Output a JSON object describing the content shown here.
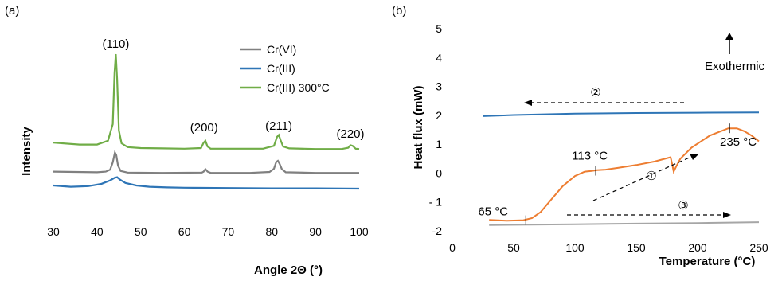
{
  "chart_data": [
    {
      "type": "line",
      "panel_label": "(a)",
      "xlabel": "Angle 2Θ (°)",
      "ylabel": "Intensity",
      "xlim": [
        30,
        100
      ],
      "x_ticks": [
        "30",
        "40",
        "50",
        "60",
        "70",
        "80",
        "90",
        "100"
      ],
      "y_ticks": [],
      "grid": false,
      "legend_position": "top-right",
      "series": [
        {
          "name": "Cr(VI)",
          "color": "#808080",
          "baseline": 0.0,
          "x": [
            30,
            40,
            42,
            43,
            43.6,
            44.1,
            44.4,
            44.8,
            45.4,
            47,
            55,
            64,
            64.4,
            64.8,
            65.3,
            66,
            75,
            79.5,
            80.5,
            81.0,
            81.4,
            81.8,
            82.3,
            83.2,
            90,
            100
          ],
          "y": [
            0.6,
            0.4,
            0.6,
            1.2,
            3.5,
            6.6,
            5.8,
            2.5,
            0.8,
            0.3,
            0.2,
            0.3,
            0.6,
            1.4,
            0.6,
            0.2,
            0.2,
            0.5,
            1.5,
            3.6,
            4.0,
            3.0,
            1.4,
            0.4,
            0.2,
            0.2
          ]
        },
        {
          "name": "Cr(III)",
          "color": "#2e75b6",
          "baseline": 0.0,
          "x": [
            30,
            34,
            38,
            41,
            43,
            44,
            44.6,
            45.3,
            46.5,
            49,
            52,
            56,
            60,
            70,
            80,
            90,
            100
          ],
          "y": [
            1.0,
            0.6,
            0.8,
            1.5,
            2.6,
            3.4,
            3.6,
            2.8,
            1.8,
            1.0,
            0.6,
            0.4,
            0.3,
            0.2,
            0.1,
            0.1,
            0.0
          ]
        },
        {
          "name": "Cr(III) 300°C",
          "color": "#70ad47",
          "baseline": 0.0,
          "x": [
            30,
            36,
            40,
            42.5,
            43.6,
            44.0,
            44.3,
            44.6,
            45.0,
            45.6,
            47,
            50,
            55,
            60,
            63.8,
            64.4,
            64.8,
            65.3,
            66,
            70,
            78,
            80.5,
            81.2,
            81.6,
            82.0,
            82.6,
            84,
            90,
            96,
            97.5,
            98.0,
            98.5,
            99.2,
            100
          ],
          "y": [
            2.2,
            1.6,
            1.6,
            2.8,
            8.0,
            24.0,
            30.0,
            22.0,
            6.0,
            2.0,
            0.8,
            0.5,
            0.4,
            0.3,
            0.5,
            2.2,
            2.8,
            1.0,
            0.3,
            0.3,
            0.3,
            1.2,
            4.0,
            4.6,
            3.0,
            1.0,
            0.4,
            0.2,
            0.2,
            0.6,
            1.4,
            1.2,
            0.3,
            0.2
          ]
        }
      ],
      "annotations": [
        {
          "text": "(110)",
          "x": 44.3
        },
        {
          "text": "(200)",
          "x": 64.5
        },
        {
          "text": "(211)",
          "x": 81.6
        },
        {
          "text": "(220)",
          "x": 98.0
        }
      ]
    },
    {
      "type": "line",
      "panel_label": "(b)",
      "xlabel": "Temperature (°C)",
      "ylabel": "Heat flux (mW)",
      "xlim": [
        0,
        250
      ],
      "ylim": [
        -2,
        5
      ],
      "x_ticks": [
        "0",
        "50",
        "100",
        "150",
        "200",
        "250"
      ],
      "y_ticks": [
        "5",
        "4",
        "3",
        "2",
        "1",
        "0",
        "- 1",
        "-2"
      ],
      "grid": false,
      "series": [
        {
          "color": "#2e75b6",
          "x": [
            25,
            50,
            100,
            150,
            200,
            250
          ],
          "y": [
            1.97,
            2.01,
            2.06,
            2.08,
            2.09,
            2.1
          ]
        },
        {
          "color": "#ed7d31",
          "x": [
            30,
            45,
            58,
            65,
            72,
            80,
            90,
            100,
            108,
            113,
            118,
            125,
            135,
            150,
            165,
            178,
            179.2,
            180.5,
            182.5,
            186,
            195,
            210,
            225,
            232,
            238,
            244,
            250
          ],
          "y": [
            -1.62,
            -1.65,
            -1.63,
            -1.56,
            -1.35,
            -0.95,
            -0.45,
            -0.1,
            0.05,
            0.07,
            0.1,
            0.12,
            0.18,
            0.28,
            0.4,
            0.55,
            0.32,
            0.05,
            0.22,
            0.5,
            0.88,
            1.3,
            1.55,
            1.55,
            1.45,
            1.3,
            1.1
          ]
        },
        {
          "color": "#a6a6a6",
          "x": [
            30,
            100,
            150,
            200,
            250
          ],
          "y": [
            -1.8,
            -1.77,
            -1.75,
            -1.73,
            -1.7
          ]
        }
      ],
      "annotations": [
        {
          "text": "65 °C",
          "x": 60,
          "y": -1.63
        },
        {
          "text": "113 °C",
          "x": 117,
          "y": 0.08
        },
        {
          "text": "235 °C",
          "x": 226,
          "y": 1.55
        },
        {
          "text": "Exothermic"
        }
      ],
      "step_labels": [
        "②",
        "①",
        "③"
      ]
    }
  ]
}
